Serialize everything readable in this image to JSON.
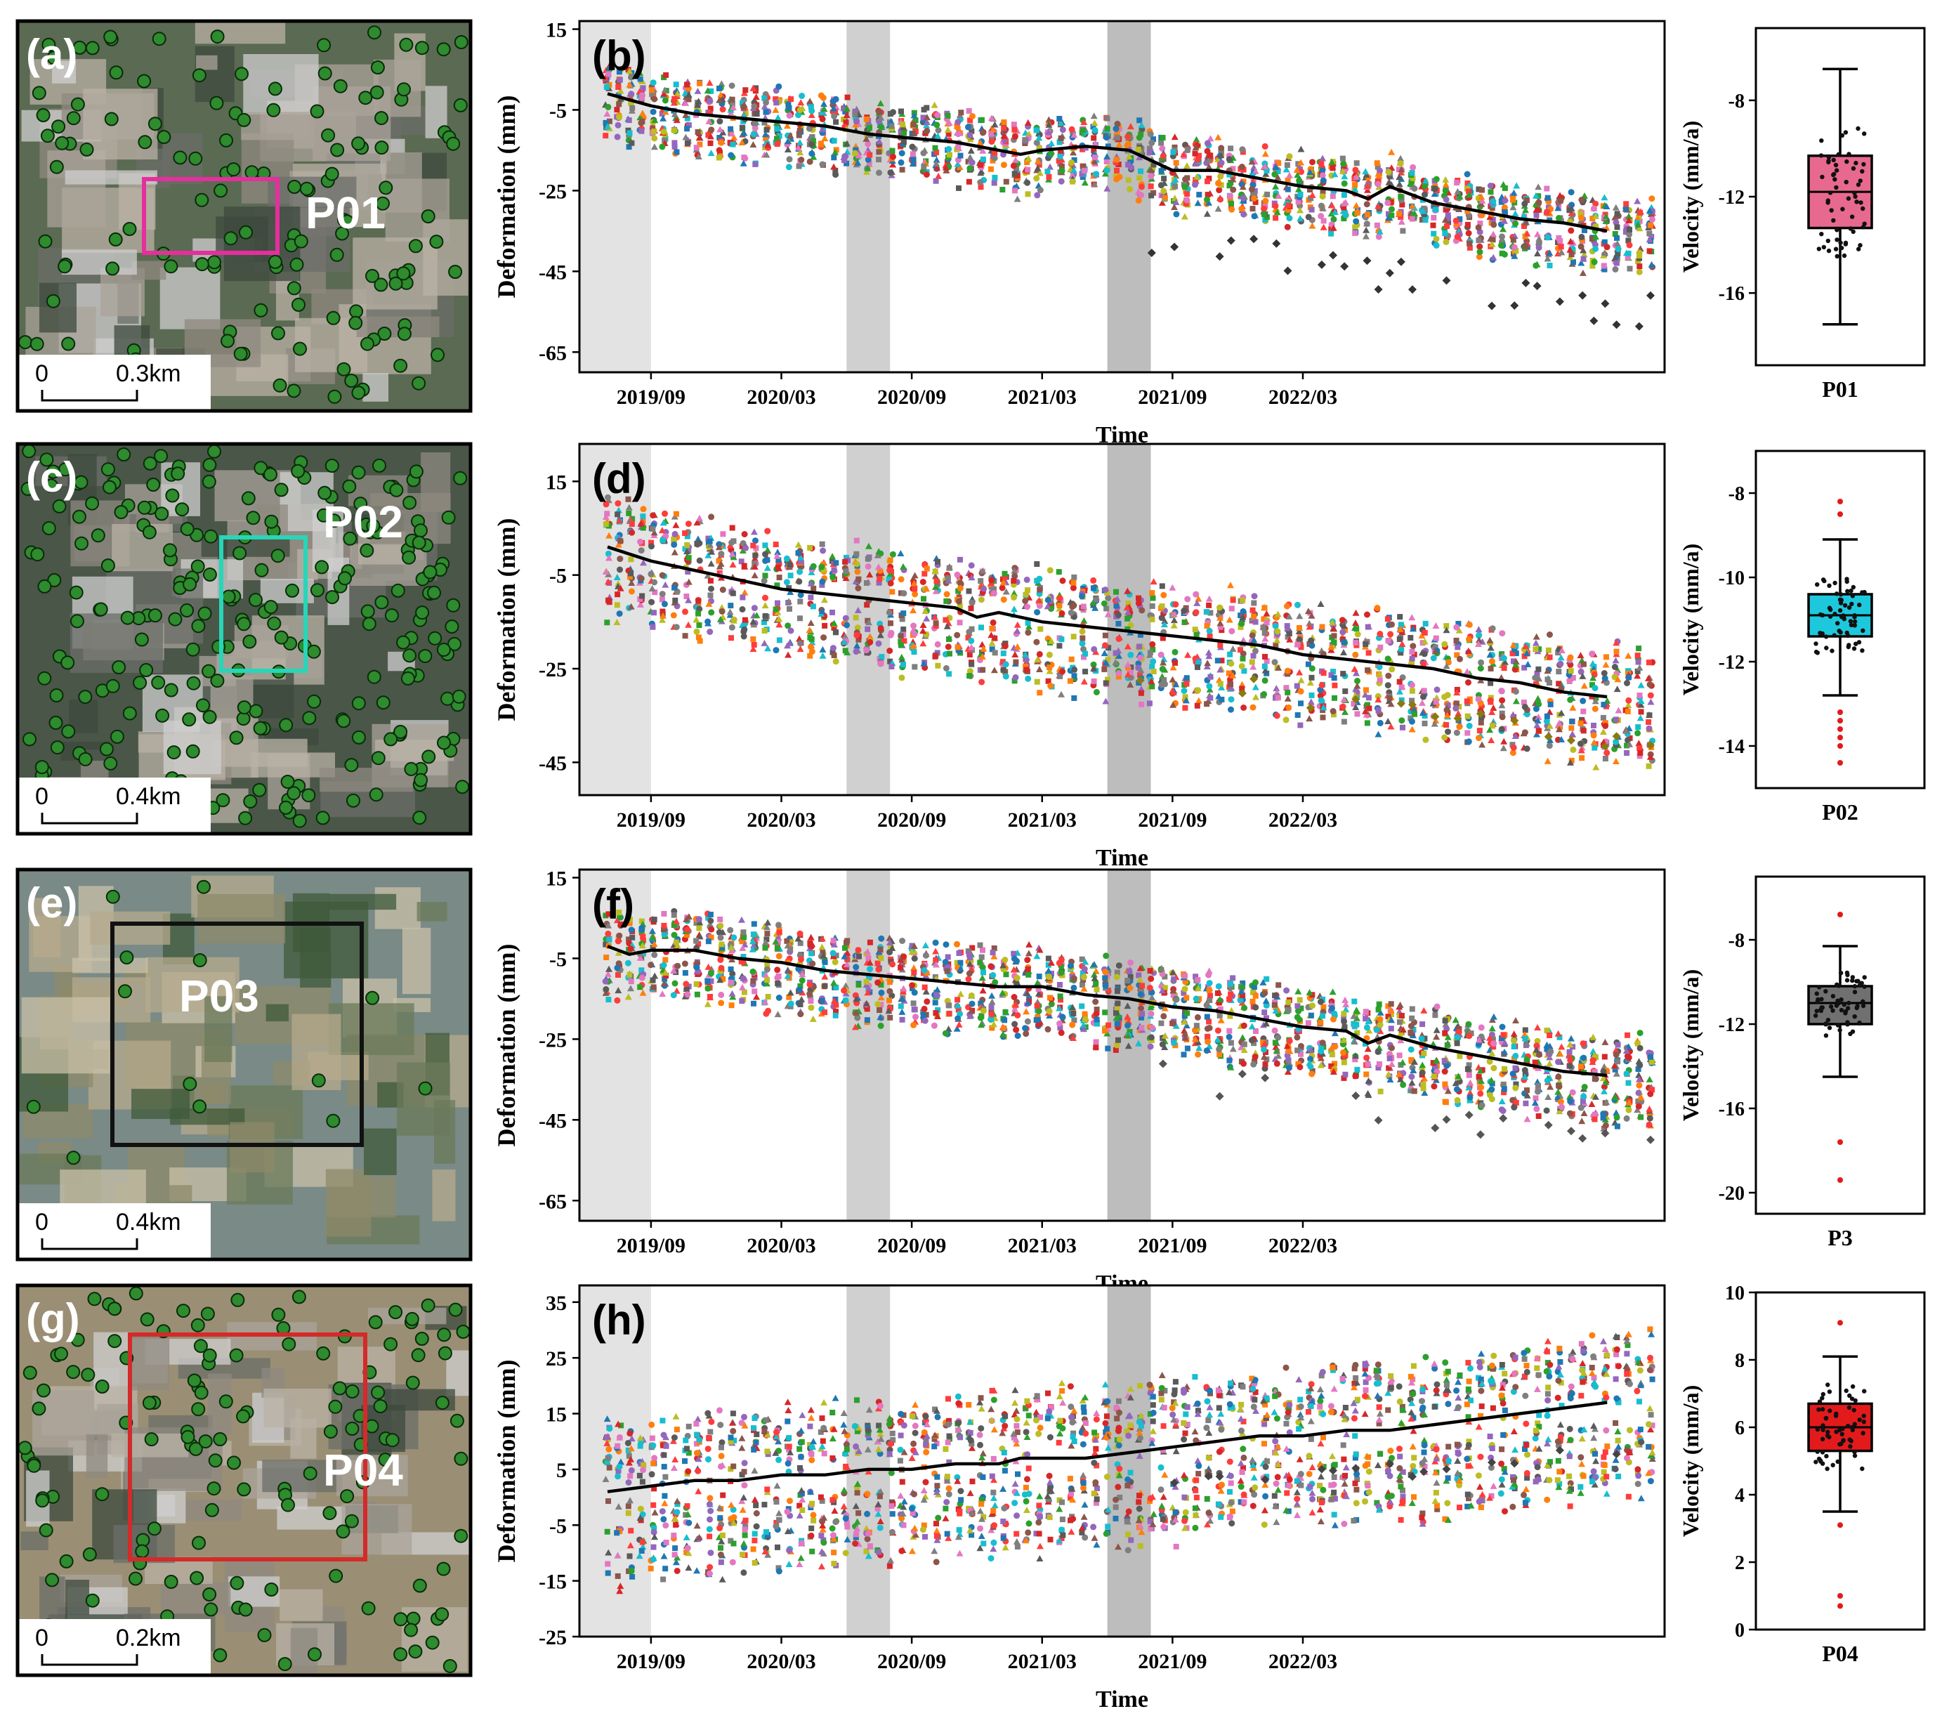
{
  "chart_data": [
    {
      "type": "scatter",
      "panel": "(b)",
      "map_panel": "(a)",
      "site": "P01",
      "title": "",
      "xlabel": "Time",
      "ylabel": "Deformation  (mm)",
      "x_ticks": [
        "2019/09",
        "2020/03",
        "2020/09",
        "2021/03",
        "2021/09",
        "2022/03"
      ],
      "y_ticks": [
        15,
        -5,
        -25,
        -45,
        -65
      ],
      "ylim": [
        -70,
        17
      ],
      "trend": [
        [
          0,
          -1
        ],
        [
          2,
          -4
        ],
        [
          4,
          -6
        ],
        [
          6,
          -7
        ],
        [
          8,
          -8
        ],
        [
          10,
          -9
        ],
        [
          12,
          -11
        ],
        [
          14,
          -12
        ],
        [
          16,
          -13
        ],
        [
          18,
          -15
        ],
        [
          19,
          -16
        ],
        [
          20,
          -15
        ],
        [
          22,
          -14
        ],
        [
          24,
          -15
        ],
        [
          26,
          -20
        ],
        [
          28,
          -20
        ],
        [
          30,
          -22
        ],
        [
          32,
          -24
        ],
        [
          34,
          -25
        ],
        [
          35,
          -27
        ],
        [
          36,
          -24
        ],
        [
          38,
          -28
        ],
        [
          40,
          -30
        ],
        [
          42,
          -32
        ],
        [
          44,
          -33
        ],
        [
          46,
          -35
        ]
      ],
      "series_spread": [
        -4,
        6
      ],
      "outlier_depth": -30,
      "marker_color": "#333333",
      "box": {
        "ylabel": "Velocity (mm/a)",
        "label": "P01",
        "color": "#e8698f",
        "y_ticks": [
          -8,
          -12,
          -16
        ],
        "ylim": [
          -19,
          -5
        ],
        "whisker_low": -17.3,
        "q1": -13.3,
        "median": -11.8,
        "q3": -10.3,
        "whisker_high": -6.7,
        "outliers": []
      }
    },
    {
      "type": "scatter",
      "panel": "(d)",
      "map_panel": "(c)",
      "site": "P02",
      "title": "",
      "xlabel": "Time",
      "ylabel": "Deformation  (mm)",
      "x_ticks": [
        "2019/09",
        "2020/03",
        "2020/09",
        "2021/03",
        "2021/09",
        "2022/03"
      ],
      "y_ticks": [
        15,
        -5,
        -25,
        -45
      ],
      "ylim": [
        -52,
        23
      ],
      "trend": [
        [
          0,
          1
        ],
        [
          2,
          -2
        ],
        [
          4,
          -4
        ],
        [
          6,
          -6
        ],
        [
          8,
          -8
        ],
        [
          10,
          -9
        ],
        [
          12,
          -10
        ],
        [
          14,
          -11
        ],
        [
          16,
          -12
        ],
        [
          17,
          -14
        ],
        [
          18,
          -13
        ],
        [
          20,
          -15
        ],
        [
          22,
          -16
        ],
        [
          24,
          -17
        ],
        [
          26,
          -18
        ],
        [
          28,
          -19
        ],
        [
          30,
          -20
        ],
        [
          32,
          -22
        ],
        [
          34,
          -23
        ],
        [
          36,
          -24
        ],
        [
          38,
          -25
        ],
        [
          40,
          -27
        ],
        [
          42,
          -28
        ],
        [
          44,
          -30
        ],
        [
          46,
          -31
        ]
      ],
      "series_spread": [
        -6,
        6
      ],
      "outlier_depth": -14,
      "marker_color": "#8a7a10",
      "box": {
        "ylabel": "Velocity (mm/a)",
        "label": "P02",
        "color": "#1ec8dc",
        "y_ticks": [
          -8,
          -10,
          -12,
          -14
        ],
        "ylim": [
          -15,
          -7
        ],
        "whisker_low": -12.8,
        "q1": -11.4,
        "median": -10.9,
        "q3": -10.4,
        "whisker_high": -9.1,
        "outliers": [
          -8.2,
          -8.5,
          -13.2,
          -13.4,
          -13.6,
          -13.8,
          -14.0,
          -14.4
        ]
      }
    },
    {
      "type": "scatter",
      "panel": "(f)",
      "map_panel": "(e)",
      "site": "P03",
      "title": "",
      "xlabel": "Time",
      "ylabel": "Deformation  (mm)",
      "x_ticks": [
        "2019/09",
        "2020/03",
        "2020/09",
        "2021/03",
        "2021/09",
        "2022/03"
      ],
      "y_ticks": [
        15,
        -5,
        -25,
        -45,
        -65
      ],
      "ylim": [
        -70,
        17
      ],
      "trend": [
        [
          0,
          -2
        ],
        [
          1,
          -4
        ],
        [
          2,
          -3
        ],
        [
          4,
          -3
        ],
        [
          6,
          -5
        ],
        [
          8,
          -6
        ],
        [
          10,
          -8
        ],
        [
          12,
          -9
        ],
        [
          14,
          -10
        ],
        [
          16,
          -11
        ],
        [
          18,
          -12
        ],
        [
          20,
          -12
        ],
        [
          22,
          -14
        ],
        [
          24,
          -15
        ],
        [
          26,
          -17
        ],
        [
          28,
          -18
        ],
        [
          30,
          -20
        ],
        [
          32,
          -22
        ],
        [
          34,
          -23
        ],
        [
          35,
          -26
        ],
        [
          36,
          -24
        ],
        [
          38,
          -27
        ],
        [
          40,
          -29
        ],
        [
          42,
          -31
        ],
        [
          44,
          -33
        ],
        [
          46,
          -34
        ]
      ],
      "series_spread": [
        -5,
        6
      ],
      "outlier_depth": -28,
      "marker_color": "#555555",
      "box": {
        "ylabel": "Velocity (mm/a)",
        "label": "P3",
        "color": "#707070",
        "y_ticks": [
          -8,
          -12,
          -16,
          -20
        ],
        "ylim": [
          -21,
          -5
        ],
        "whisker_low": -14.5,
        "q1": -12.0,
        "median": -11.0,
        "q3": -10.2,
        "whisker_high": -8.3,
        "outliers": [
          -6.8,
          -17.6,
          -19.4
        ]
      }
    },
    {
      "type": "scatter",
      "panel": "(h)",
      "map_panel": "(g)",
      "site": "P04",
      "title": "",
      "xlabel": "Time",
      "ylabel": "Deformation  (mm)",
      "x_ticks": [
        "2019/09",
        "2020/03",
        "2020/09",
        "2021/03",
        "2021/09",
        "2022/03"
      ],
      "y_ticks": [
        35,
        25,
        15,
        5,
        -5,
        -15,
        -25
      ],
      "ylim": [
        -25,
        38
      ],
      "trend": [
        [
          0,
          1
        ],
        [
          2,
          2
        ],
        [
          4,
          3
        ],
        [
          6,
          3
        ],
        [
          8,
          4
        ],
        [
          10,
          4
        ],
        [
          12,
          5
        ],
        [
          14,
          5
        ],
        [
          16,
          6
        ],
        [
          18,
          6
        ],
        [
          19,
          7
        ],
        [
          20,
          7
        ],
        [
          22,
          7
        ],
        [
          24,
          8
        ],
        [
          26,
          9
        ],
        [
          28,
          10
        ],
        [
          30,
          11
        ],
        [
          32,
          11
        ],
        [
          34,
          12
        ],
        [
          36,
          12
        ],
        [
          38,
          13
        ],
        [
          40,
          14
        ],
        [
          42,
          15
        ],
        [
          44,
          16
        ],
        [
          46,
          17
        ]
      ],
      "series_spread": [
        -7,
        8
      ],
      "outlier_depth": -12,
      "marker_color": "#444444",
      "box": {
        "ylabel": "Velocity (mm/a)",
        "label": "P04",
        "color": "#e31a1c",
        "y_ticks": [
          0,
          2,
          4,
          6,
          8,
          10
        ],
        "ylim": [
          0,
          10
        ],
        "whisker_low": 3.5,
        "q1": 5.3,
        "median": 6.0,
        "q3": 6.7,
        "whisker_high": 8.1,
        "outliers": [
          9.1,
          3.1,
          1.0,
          0.7
        ]
      }
    }
  ],
  "maps": [
    {
      "panel": "(a)",
      "site": "P01",
      "scale_zero": "0",
      "scale_label": "0.3km",
      "frame_color": "#e62e9e"
    },
    {
      "panel": "(c)",
      "site": "P02",
      "scale_zero": "0",
      "scale_label": "0.4km",
      "frame_color": "#27d6b8"
    },
    {
      "panel": "(e)",
      "site": "P03",
      "scale_zero": "0",
      "scale_label": "0.4km",
      "frame_color": "#111111"
    },
    {
      "panel": "(g)",
      "site": "P04",
      "scale_zero": "0",
      "scale_label": "0.2km",
      "frame_color": "#d42a2a"
    }
  ],
  "shading_windows_months": [
    [
      0,
      2
    ],
    [
      11,
      13
    ],
    [
      23,
      25
    ]
  ],
  "legend_colors": [
    "#1f77b4",
    "#ff7f0e",
    "#2ca02c",
    "#d62728",
    "#9467bd",
    "#8c564b",
    "#e377c2",
    "#7f7f7f",
    "#bcbd22",
    "#17becf",
    "#5a5a5a",
    "#ff3c3c"
  ]
}
